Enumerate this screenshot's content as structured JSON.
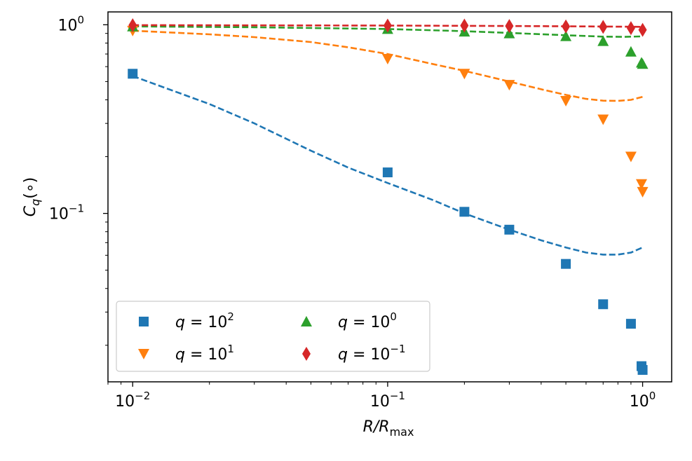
{
  "chart_data": {
    "type": "scatter",
    "title": "",
    "xscale": "log",
    "yscale": "log",
    "xlabel": {
      "main": "R/R",
      "sub": "max"
    },
    "ylabel": {
      "main": "C",
      "sub": "q",
      "suffix": "(∘)"
    },
    "xlim": [
      0.008,
      1.3
    ],
    "ylim": [
      0.0128,
      1.17
    ],
    "grid": false,
    "legend_position": "lower-left",
    "x_ticks": [
      {
        "value": 0.01,
        "base": "10",
        "exp": "−2"
      },
      {
        "value": 0.1,
        "base": "10",
        "exp": "−1"
      },
      {
        "value": 1,
        "base": "10",
        "exp": "0"
      }
    ],
    "y_ticks": [
      {
        "value": 0.1,
        "base": "10",
        "exp": "−1"
      },
      {
        "value": 1,
        "base": "10",
        "exp": "0"
      }
    ],
    "series": [
      {
        "name": "q = 10^2",
        "label_prefix": "q = 10",
        "label_exp": "2",
        "color": "#1f77b4",
        "marker": "square",
        "x": [
          0.01,
          0.1,
          0.2,
          0.3,
          0.5,
          0.7,
          0.9,
          0.99,
          1.0
        ],
        "y": [
          0.55,
          0.165,
          0.102,
          0.082,
          0.054,
          0.033,
          0.026,
          0.0155,
          0.0148
        ],
        "fit_x": [
          0.01,
          0.02,
          0.03,
          0.05,
          0.07,
          0.1,
          0.15,
          0.2,
          0.3,
          0.4,
          0.5,
          0.6,
          0.7,
          0.8,
          0.9,
          1.0
        ],
        "fit_y": [
          0.535,
          0.38,
          0.3,
          0.215,
          0.175,
          0.145,
          0.118,
          0.1,
          0.082,
          0.072,
          0.066,
          0.062,
          0.0605,
          0.0605,
          0.062,
          0.066
        ]
      },
      {
        "name": "q = 10^1",
        "label_prefix": "q = 10",
        "label_exp": "1",
        "color": "#ff7f0e",
        "marker": "triangle-down",
        "x": [
          0.01,
          0.1,
          0.2,
          0.3,
          0.5,
          0.7,
          0.9,
          0.99,
          1.0
        ],
        "y": [
          0.93,
          0.66,
          0.55,
          0.48,
          0.395,
          0.315,
          0.2,
          0.143,
          0.13
        ],
        "fit_x": [
          0.01,
          0.02,
          0.03,
          0.05,
          0.07,
          0.1,
          0.15,
          0.2,
          0.3,
          0.4,
          0.5,
          0.6,
          0.7,
          0.8,
          0.9,
          1.0
        ],
        "fit_y": [
          0.93,
          0.89,
          0.86,
          0.81,
          0.76,
          0.7,
          0.62,
          0.57,
          0.5,
          0.455,
          0.425,
          0.405,
          0.396,
          0.395,
          0.4,
          0.415
        ]
      },
      {
        "name": "q = 10^0",
        "label_prefix": "q = 10",
        "label_exp": "0",
        "color": "#2ca02c",
        "marker": "triangle-up",
        "x": [
          0.01,
          0.1,
          0.2,
          0.3,
          0.5,
          0.7,
          0.9,
          0.99,
          1.0
        ],
        "y": [
          0.98,
          0.95,
          0.92,
          0.9,
          0.87,
          0.82,
          0.72,
          0.63,
          0.62
        ],
        "fit_x": [
          0.01,
          0.03,
          0.1,
          0.2,
          0.3,
          0.5,
          0.7,
          0.85,
          1.0
        ],
        "fit_y": [
          0.98,
          0.97,
          0.95,
          0.925,
          0.905,
          0.88,
          0.865,
          0.863,
          0.868
        ]
      },
      {
        "name": "q = 10^-1",
        "label_prefix": "q = 10",
        "label_exp": "−1",
        "color": "#d62728",
        "marker": "diamond",
        "x": [
          0.01,
          0.1,
          0.2,
          0.3,
          0.5,
          0.7,
          0.9,
          1.0
        ],
        "y": [
          0.995,
          0.99,
          0.99,
          0.985,
          0.98,
          0.975,
          0.96,
          0.94
        ],
        "fit_x": [
          0.01,
          0.1,
          0.3,
          0.6,
          1.0
        ],
        "fit_y": [
          0.995,
          0.99,
          0.985,
          0.98,
          0.975
        ]
      }
    ]
  }
}
